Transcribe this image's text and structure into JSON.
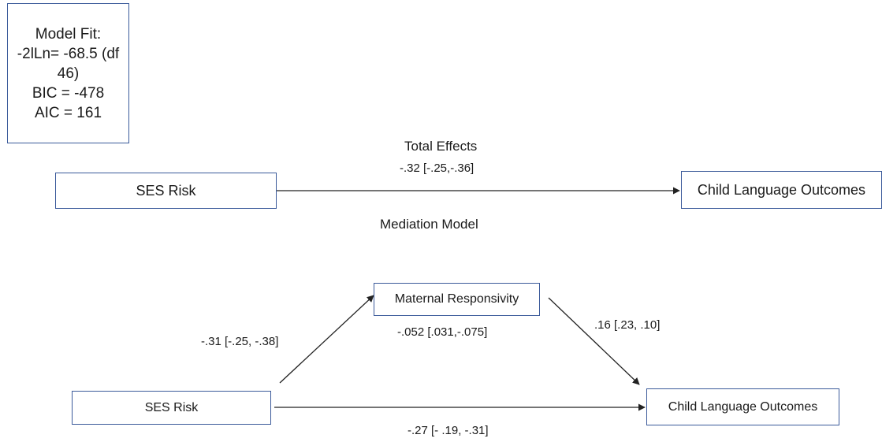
{
  "model_fit": {
    "lines": [
      "Model Fit:",
      "-2lLn= -68.5 (df",
      "46)",
      "BIC = -478",
      "AIC = 161"
    ]
  },
  "total_effects": {
    "title": "Total Effects",
    "path_coef": "-.32 [-.25,-.36]",
    "predictor": "SES Risk",
    "outcome": "Child Language Outcomes"
  },
  "mediation_model": {
    "title": "Mediation Model",
    "predictor": "SES Risk",
    "mediator": "Maternal Responsivity",
    "outcome": "Child Language Outcomes",
    "path_a": "-.31 [-.25, -.38]",
    "path_b": ".16 [.23, .10]",
    "indirect": "-.052 [.031,-.075]",
    "direct": "-.27 [- .19, -.31]"
  },
  "colors": {
    "box_border": "#3b5a9a",
    "arrow": "#222222",
    "text": "#1a1a1a"
  }
}
